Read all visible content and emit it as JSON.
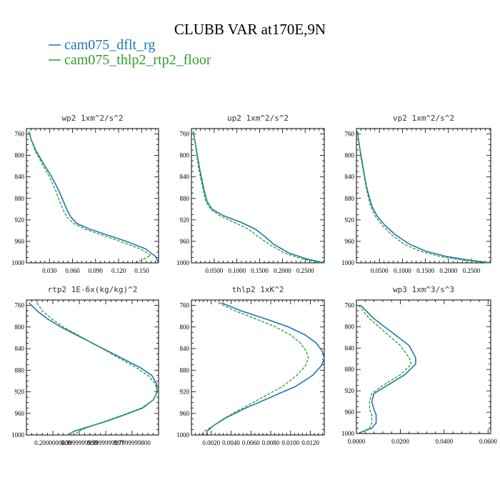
{
  "figure_title": "CLUBB VAR at170E,9N",
  "legend": [
    {
      "label": "cam075_dflt_rg",
      "color": "#1f77b4",
      "dash": "solid"
    },
    {
      "label": "cam075_thlp2_rtp2_floor",
      "color": "#2ca02c",
      "dash": "dashed"
    }
  ],
  "chart_data": [
    {
      "type": "line",
      "title": "wp2  1xm^2/s^2",
      "xlim": [
        0.0,
        0.172
      ],
      "ylim": [
        1000,
        750
      ],
      "yticks": [
        760,
        800,
        840,
        880,
        920,
        960,
        1000
      ],
      "xticks": [
        0.03,
        0.06,
        0.09,
        0.12,
        0.15
      ],
      "xtick_labels": [
        "0.030",
        "0.060",
        "0.090",
        "0.120",
        "0.150"
      ],
      "series": [
        {
          "name": "cam075_dflt_rg",
          "x": [
            0.003,
            0.006,
            0.012,
            0.022,
            0.033,
            0.042,
            0.048,
            0.053,
            0.058,
            0.066,
            0.082,
            0.105,
            0.13,
            0.155,
            0.168,
            0.172
          ],
          "y": [
            755,
            770,
            790,
            815,
            840,
            865,
            885,
            902,
            915,
            927,
            937,
            948,
            960,
            974,
            988,
            1000
          ]
        },
        {
          "name": "cam075_thlp2_rtp2_floor",
          "x": [
            0.003,
            0.006,
            0.011,
            0.02,
            0.03,
            0.038,
            0.043,
            0.048,
            0.053,
            0.062,
            0.076,
            0.098,
            0.122,
            0.148,
            0.162,
            0.15,
            0.14
          ],
          "y": [
            755,
            770,
            790,
            815,
            840,
            865,
            885,
            902,
            915,
            927,
            937,
            948,
            960,
            974,
            986,
            995,
            1000
          ]
        }
      ]
    },
    {
      "type": "line",
      "title": "up2  1xm^2/s^2",
      "xlim": [
        0.0,
        0.292
      ],
      "ylim": [
        1000,
        750
      ],
      "yticks": [
        760,
        800,
        840,
        880,
        920,
        960,
        1000
      ],
      "xticks": [
        0.05,
        0.1,
        0.15,
        0.2,
        0.25
      ],
      "xtick_labels": [
        "0.0500",
        "0.1000",
        "0.1500",
        "0.2000",
        "0.2500"
      ],
      "series": [
        {
          "name": "cam075_dflt_rg",
          "x": [
            0.004,
            0.008,
            0.013,
            0.018,
            0.023,
            0.028,
            0.034,
            0.045,
            0.07,
            0.11,
            0.14,
            0.16,
            0.18,
            0.215,
            0.255,
            0.292
          ],
          "y": [
            755,
            775,
            800,
            825,
            845,
            865,
            885,
            900,
            912,
            925,
            937,
            950,
            965,
            982,
            993,
            1000
          ]
        },
        {
          "name": "cam075_thlp2_rtp2_floor",
          "x": [
            0.004,
            0.008,
            0.012,
            0.016,
            0.021,
            0.026,
            0.031,
            0.042,
            0.062,
            0.095,
            0.125,
            0.145,
            0.17,
            0.205,
            0.245,
            0.285
          ],
          "y": [
            755,
            775,
            800,
            825,
            845,
            865,
            885,
            900,
            912,
            925,
            937,
            950,
            965,
            982,
            993,
            1000
          ]
        }
      ]
    },
    {
      "type": "line",
      "title": "vp2  1xm^2/s^2",
      "xlim": [
        0.0,
        0.292
      ],
      "ylim": [
        1000,
        750
      ],
      "yticks": [
        760,
        800,
        840,
        880,
        920,
        960,
        1000
      ],
      "xticks": [
        0.05,
        0.1,
        0.15,
        0.2,
        0.25
      ],
      "xtick_labels": [
        "0.0500",
        "0.1000",
        "0.1500",
        "0.2000",
        "0.2500"
      ],
      "series": [
        {
          "name": "cam075_dflt_rg",
          "x": [
            0.002,
            0.006,
            0.011,
            0.016,
            0.021,
            0.027,
            0.034,
            0.045,
            0.062,
            0.085,
            0.115,
            0.15,
            0.195,
            0.245,
            0.292
          ],
          "y": [
            755,
            780,
            805,
            830,
            855,
            875,
            895,
            913,
            930,
            948,
            965,
            978,
            988,
            995,
            1000
          ]
        },
        {
          "name": "cam075_thlp2_rtp2_floor",
          "x": [
            0.002,
            0.006,
            0.01,
            0.015,
            0.02,
            0.025,
            0.031,
            0.041,
            0.056,
            0.077,
            0.103,
            0.138,
            0.182,
            0.232,
            0.285
          ],
          "y": [
            755,
            780,
            805,
            830,
            855,
            875,
            895,
            913,
            930,
            948,
            965,
            978,
            988,
            995,
            1000
          ]
        }
      ]
    },
    {
      "type": "line",
      "title": "rtp2  1E-6x(kg/kg)^2",
      "xlim": [
        0.0,
        1.0
      ],
      "ylim": [
        1000,
        750
      ],
      "yticks": [
        760,
        800,
        840,
        880,
        920,
        960,
        1000
      ],
      "xticks": [
        0.2,
        0.4,
        0.6,
        0.8
      ],
      "xtick_labels": [
        "0.2000000000",
        "0.3999999999",
        "0.5999999997",
        "0.7999999800"
      ],
      "series": [
        {
          "name": "cam075_dflt_rg",
          "x": [
            0.02,
            0.08,
            0.16,
            0.26,
            0.38,
            0.5,
            0.62,
            0.74,
            0.86,
            0.95,
            0.985,
            0.99,
            0.96,
            0.88,
            0.75,
            0.6,
            0.44,
            0.36,
            0.34,
            0.32
          ],
          "y": [
            755,
            770,
            785,
            800,
            815,
            830,
            845,
            860,
            875,
            890,
            905,
            920,
            935,
            950,
            962,
            975,
            987,
            993,
            996,
            1000
          ]
        },
        {
          "name": "cam075_thlp2_rtp2_floor",
          "x": [
            0.08,
            0.12,
            0.19,
            0.28,
            0.39,
            0.5,
            0.61,
            0.72,
            0.83,
            0.92,
            0.975,
            0.99,
            0.96,
            0.87,
            0.74,
            0.59,
            0.45,
            0.4,
            0.38,
            0.37
          ],
          "y": [
            755,
            770,
            785,
            800,
            815,
            830,
            845,
            860,
            875,
            890,
            905,
            920,
            935,
            950,
            962,
            975,
            987,
            993,
            996,
            1000
          ]
        }
      ]
    },
    {
      "type": "line",
      "title": "thlp2  1xK^2",
      "xlim": [
        0.0,
        0.0134
      ],
      "ylim": [
        1000,
        750
      ],
      "yticks": [
        760,
        800,
        840,
        880,
        920,
        960,
        1000
      ],
      "xticks": [
        0.002,
        0.004,
        0.006,
        0.008,
        0.01,
        0.012
      ],
      "xtick_labels": [
        "0.0020",
        "0.0040",
        "0.0060",
        "0.0080",
        "0.0100",
        "0.0120"
      ],
      "series": [
        {
          "name": "cam075_dflt_rg",
          "x": [
            0.003,
            0.005,
            0.0075,
            0.0098,
            0.0115,
            0.0126,
            0.0132,
            0.0134,
            0.0131,
            0.0122,
            0.0105,
            0.008,
            0.0055,
            0.0035,
            0.0022,
            0.0016,
            0.0015
          ],
          "y": [
            755,
            770,
            785,
            800,
            815,
            830,
            845,
            858,
            872,
            890,
            910,
            930,
            950,
            968,
            983,
            993,
            1000
          ]
        },
        {
          "name": "cam075_thlp2_rtp2_floor",
          "x": [
            0.0027,
            0.0044,
            0.0065,
            0.0085,
            0.01,
            0.011,
            0.0116,
            0.0118,
            0.0115,
            0.0106,
            0.0092,
            0.0072,
            0.0052,
            0.0034,
            0.0022,
            0.0013,
            0.001
          ],
          "y": [
            755,
            770,
            785,
            800,
            815,
            830,
            845,
            858,
            872,
            890,
            910,
            930,
            950,
            968,
            983,
            993,
            1000
          ]
        }
      ]
    },
    {
      "type": "line",
      "title": "wp3  1xm^3/s^3",
      "xlim": [
        0.0,
        0.0612
      ],
      "ylim": [
        1000,
        750
      ],
      "yticks": [
        760,
        800,
        840,
        880,
        920,
        960,
        1000
      ],
      "xticks": [
        0.0,
        0.02,
        0.04,
        0.06
      ],
      "xtick_labels": [
        "0.0000",
        "0.0200",
        "0.0400",
        "0.0600"
      ],
      "series": [
        {
          "name": "cam075_dflt_rg",
          "x": [
            0.002,
            0.008,
            0.016,
            0.024,
            0.027,
            0.027,
            0.022,
            0.014,
            0.008,
            0.007,
            0.008,
            0.009,
            0.009,
            0.007,
            0.003,
            0.0005
          ],
          "y": [
            760,
            785,
            810,
            835,
            858,
            870,
            890,
            910,
            925,
            940,
            955,
            965,
            980,
            990,
            996,
            1000
          ]
        },
        {
          "name": "cam075_thlp2_rtp2_floor",
          "x": [
            0.001,
            0.006,
            0.013,
            0.02,
            0.024,
            0.025,
            0.02,
            0.012,
            0.007,
            0.006,
            0.006,
            0.007,
            0.007,
            0.006,
            0.003,
            0.0005
          ],
          "y": [
            760,
            785,
            810,
            835,
            858,
            870,
            890,
            910,
            925,
            940,
            955,
            965,
            980,
            990,
            996,
            1000
          ]
        }
      ]
    }
  ]
}
